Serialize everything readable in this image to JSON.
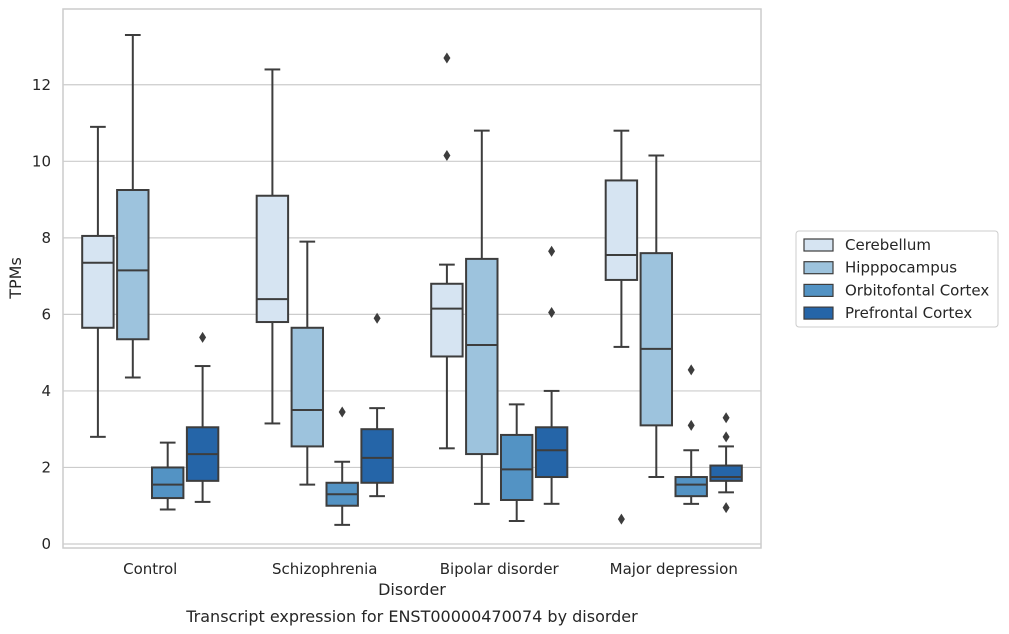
{
  "chart_data": {
    "type": "box",
    "xlabel": "Disorder",
    "ylabel": "TPMs",
    "caption": "Transcript expression for ENST00000470074 by disorder",
    "ylim": [
      -0.1,
      14.0
    ],
    "yticks": [
      0,
      2,
      4,
      6,
      8,
      10,
      12
    ],
    "grid": "horizontal",
    "legend_position": "right",
    "categories": [
      "Control",
      "Schizophrenia",
      "Bipolar disorder",
      "Major depression"
    ],
    "series": [
      {
        "name": "Cerebellum",
        "color": "#d6e4f2",
        "boxes": [
          {
            "whislo": 2.8,
            "q1": 5.65,
            "med": 7.35,
            "q3": 8.05,
            "whishi": 10.9,
            "fliers": []
          },
          {
            "whislo": 3.15,
            "q1": 5.8,
            "med": 6.4,
            "q3": 9.1,
            "whishi": 12.4,
            "fliers": []
          },
          {
            "whislo": 2.5,
            "q1": 4.9,
            "med": 6.15,
            "q3": 6.8,
            "whishi": 7.3,
            "fliers": [
              10.15,
              12.7
            ]
          },
          {
            "whislo": 5.15,
            "q1": 6.9,
            "med": 7.55,
            "q3": 9.5,
            "whishi": 10.8,
            "fliers": [
              0.65
            ]
          }
        ]
      },
      {
        "name": "Hipppocampus",
        "color": "#9dc3dd",
        "boxes": [
          {
            "whislo": 4.35,
            "q1": 5.35,
            "med": 7.15,
            "q3": 9.25,
            "whishi": 13.3,
            "fliers": []
          },
          {
            "whislo": 1.55,
            "q1": 2.55,
            "med": 3.5,
            "q3": 5.65,
            "whishi": 7.9,
            "fliers": []
          },
          {
            "whislo": 1.05,
            "q1": 2.35,
            "med": 5.2,
            "q3": 7.45,
            "whishi": 10.8,
            "fliers": []
          },
          {
            "whislo": 1.75,
            "q1": 3.1,
            "med": 5.1,
            "q3": 7.6,
            "whishi": 10.15,
            "fliers": []
          }
        ]
      },
      {
        "name": "Orbitofontal Cortex",
        "color": "#5393c4",
        "boxes": [
          {
            "whislo": 0.9,
            "q1": 1.2,
            "med": 1.55,
            "q3": 2.0,
            "whishi": 2.65,
            "fliers": []
          },
          {
            "whislo": 0.5,
            "q1": 1.0,
            "med": 1.3,
            "q3": 1.6,
            "whishi": 2.15,
            "fliers": [
              3.45
            ]
          },
          {
            "whislo": 0.6,
            "q1": 1.15,
            "med": 1.95,
            "q3": 2.85,
            "whishi": 3.65,
            "fliers": []
          },
          {
            "whislo": 1.05,
            "q1": 1.25,
            "med": 1.55,
            "q3": 1.75,
            "whishi": 2.45,
            "fliers": [
              3.1,
              4.55
            ]
          }
        ]
      },
      {
        "name": "Prefrontal Cortex",
        "color": "#2565a8",
        "boxes": [
          {
            "whislo": 1.1,
            "q1": 1.65,
            "med": 2.35,
            "q3": 3.05,
            "whishi": 4.65,
            "fliers": [
              5.4
            ]
          },
          {
            "whislo": 1.25,
            "q1": 1.6,
            "med": 2.25,
            "q3": 3.0,
            "whishi": 3.55,
            "fliers": [
              5.9
            ]
          },
          {
            "whislo": 1.05,
            "q1": 1.75,
            "med": 2.45,
            "q3": 3.05,
            "whishi": 4.0,
            "fliers": [
              6.05,
              7.65
            ]
          },
          {
            "whislo": 1.35,
            "q1": 1.65,
            "med": 1.75,
            "q3": 2.05,
            "whishi": 2.55,
            "fliers": [
              0.95,
              2.8,
              3.3
            ]
          }
        ]
      }
    ]
  }
}
